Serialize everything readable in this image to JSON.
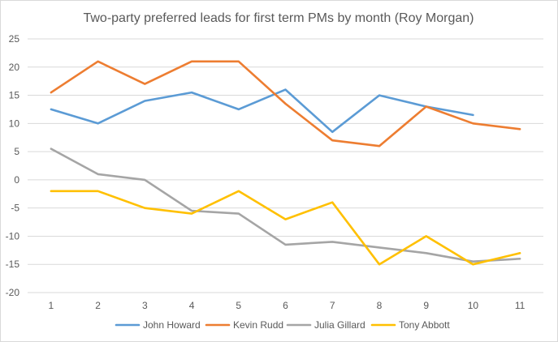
{
  "chart_data": {
    "type": "line",
    "title": "Two-party preferred leads for first term PMs by month (Roy Morgan)",
    "xlabel": "",
    "ylabel": "",
    "categories": [
      "1",
      "2",
      "3",
      "4",
      "5",
      "6",
      "7",
      "8",
      "9",
      "10",
      "11"
    ],
    "ylim": [
      -20,
      25
    ],
    "yticks": [
      "25",
      "20",
      "15",
      "10",
      "5",
      "0",
      "-5",
      "-10",
      "-15",
      "-20"
    ],
    "grid": true,
    "legend_position": "bottom",
    "series": [
      {
        "name": "John Howard",
        "color": "#5b9bd5",
        "values": [
          12.5,
          10,
          14,
          15.5,
          12.5,
          16,
          8.5,
          15,
          13,
          11.5,
          null
        ]
      },
      {
        "name": "Kevin Rudd",
        "color": "#ed7d31",
        "values": [
          15.5,
          21,
          17,
          21,
          21,
          13.5,
          7,
          6,
          13,
          10,
          9
        ]
      },
      {
        "name": "Julia Gillard",
        "color": "#a5a5a5",
        "values": [
          5.5,
          1,
          0,
          -5.5,
          -6,
          -11.5,
          -11,
          -12,
          -13,
          -14.5,
          -14
        ]
      },
      {
        "name": "Tony Abbott",
        "color": "#ffc000",
        "values": [
          -2,
          -2,
          -5,
          -6,
          -2,
          -7,
          -4,
          -15,
          -10,
          -15,
          -13
        ]
      }
    ]
  }
}
